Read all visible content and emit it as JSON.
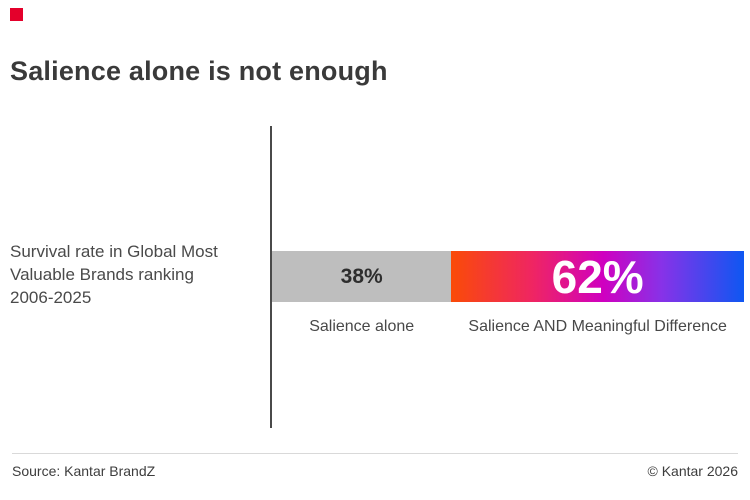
{
  "slide": {
    "title": "Salience alone is not enough",
    "accent_color": "#e4002b"
  },
  "chart": {
    "axis_label_lines": {
      "0": "Survival rate in Global Most",
      "1": "Valuable Brands ranking",
      "2": "2006-2025"
    },
    "segments": {
      "a": {
        "value_label": "38%",
        "category": "Salience alone",
        "color": "#bebebe"
      },
      "b": {
        "value_label": "62%",
        "category": "Salience AND Meaningful Difference",
        "color": "linear-gradient(90deg, #fa4b07 0%, #ef2563 28%, #cf00c0 52%, #8732e8 72%, #0e57f2 100%)"
      }
    }
  },
  "footer": {
    "source": "Source: Kantar BrandZ",
    "copyright": "© Kantar 2026"
  },
  "chart_data": {
    "type": "bar",
    "subtype": "horizontal-stacked-single-bar",
    "title": "Salience alone is not enough",
    "bar_label": "Survival rate in Global Most Valuable Brands ranking 2006-2025",
    "categories": [
      "Salience alone",
      "Salience AND Meaningful Difference"
    ],
    "values": [
      38,
      62
    ],
    "unit": "%",
    "value_labels": [
      "38%",
      "62%"
    ],
    "segment_colors": [
      "#bebebe",
      "gradient orange-magenta-purple-blue"
    ],
    "axes_visible": false,
    "grid": false,
    "legend_position": "below-bar"
  }
}
